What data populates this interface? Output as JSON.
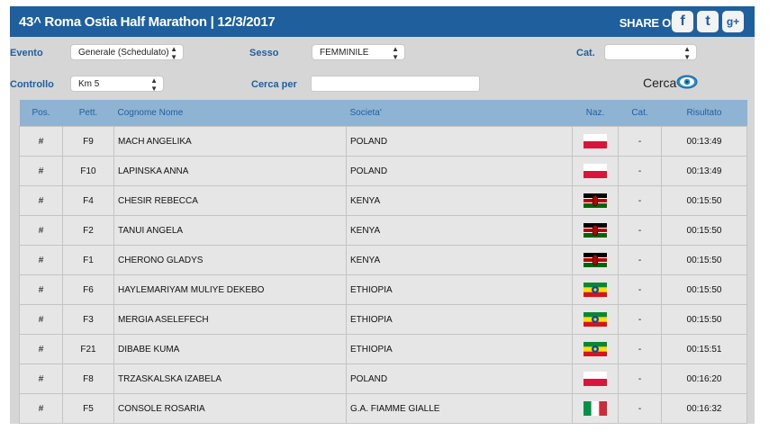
{
  "header": {
    "title": "43^ Roma Ostia Half Marathon  |  12/3/2017",
    "share_label": "SHARE ON",
    "social": [
      {
        "icon": "facebook-icon",
        "glyph": "f"
      },
      {
        "icon": "twitter-icon",
        "glyph": "t"
      },
      {
        "icon": "google-plus-icon",
        "glyph": "g+"
      }
    ]
  },
  "filters": {
    "evento_label": "Evento",
    "evento_value": "Generale (Schedulato)",
    "sesso_label": "Sesso",
    "sesso_value": "FEMMINILE",
    "cat_label": "Cat.",
    "cat_value": "",
    "controllo_label": "Controllo",
    "controllo_value": "Km 5",
    "cerca_per_label": "Cerca per",
    "cerca_per_value": "",
    "search_button": "Cerca"
  },
  "table": {
    "headers": [
      "Pos.",
      "Pett.",
      "Cognome Nome",
      "Societa'",
      "Naz.",
      "Cat.",
      "Risultato"
    ],
    "rows": [
      {
        "pos": "#",
        "pett": "F9",
        "name": "MACH ANGELIKA",
        "societa": "POLAND",
        "naz": "POL",
        "cat": "-",
        "risultato": "00:13:49"
      },
      {
        "pos": "#",
        "pett": "F10",
        "name": "LAPINSKA ANNA",
        "societa": "POLAND",
        "naz": "POL",
        "cat": "-",
        "risultato": "00:13:49"
      },
      {
        "pos": "#",
        "pett": "F4",
        "name": "CHESIR REBECCA",
        "societa": "KENYA",
        "naz": "KEN",
        "cat": "-",
        "risultato": "00:15:50"
      },
      {
        "pos": "#",
        "pett": "F2",
        "name": "TANUI ANGELA",
        "societa": "KENYA",
        "naz": "KEN",
        "cat": "-",
        "risultato": "00:15:50"
      },
      {
        "pos": "#",
        "pett": "F1",
        "name": "CHERONO GLADYS",
        "societa": "KENYA",
        "naz": "KEN",
        "cat": "-",
        "risultato": "00:15:50"
      },
      {
        "pos": "#",
        "pett": "F6",
        "name": "HAYLEMARIYAM MULIYE DEKEBO",
        "societa": "ETHIOPIA",
        "naz": "ETH",
        "cat": "-",
        "risultato": "00:15:50"
      },
      {
        "pos": "#",
        "pett": "F3",
        "name": "MERGIA ASELEFECH",
        "societa": "ETHIOPIA",
        "naz": "ETH",
        "cat": "-",
        "risultato": "00:15:50"
      },
      {
        "pos": "#",
        "pett": "F21",
        "name": "DIBABE KUMA",
        "societa": "ETHIOPIA",
        "naz": "ETH",
        "cat": "-",
        "risultato": "00:15:51"
      },
      {
        "pos": "#",
        "pett": "F8",
        "name": "TRZASKALSKA IZABELA",
        "societa": "POLAND",
        "naz": "POL",
        "cat": "-",
        "risultato": "00:16:20"
      },
      {
        "pos": "#",
        "pett": "F5",
        "name": "CONSOLE ROSARIA",
        "societa": "G.A. FIAMME GIALLE",
        "naz": "ITA",
        "cat": "-",
        "risultato": "00:16:32"
      }
    ]
  },
  "colors": {
    "header_bg": "#1f5f9e",
    "table_header_bg": "#8fb3d3",
    "panel_bg": "#d6d6d6",
    "row_bg": "#e6e6e6"
  }
}
